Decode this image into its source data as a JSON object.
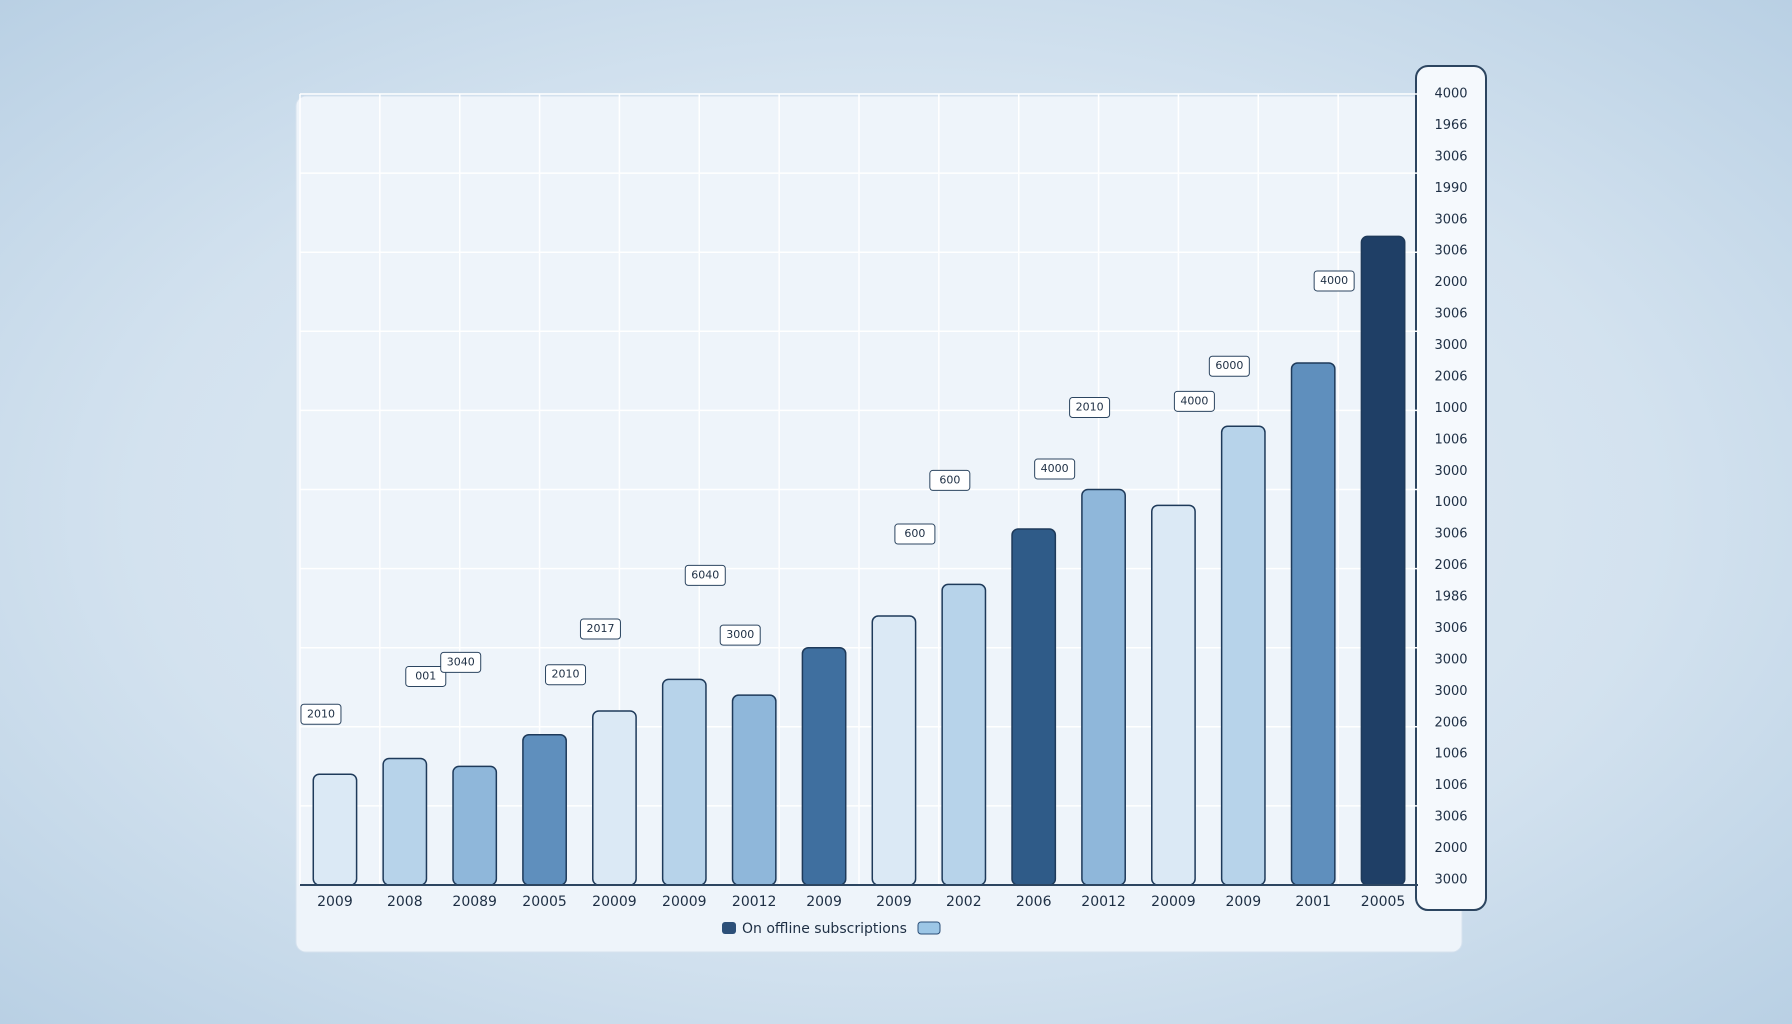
{
  "chart_data": {
    "type": "bar",
    "categories": [
      "2009",
      "2008",
      "20089",
      "20005",
      "20009",
      "20009",
      "20012",
      "2009",
      "2009",
      "2002",
      "2006",
      "20012",
      "20009",
      "2009",
      "2001",
      "20005"
    ],
    "values": [
      14,
      16,
      15,
      19,
      22,
      26,
      24,
      30,
      34,
      38,
      45,
      50,
      48,
      58,
      66,
      82
    ],
    "colors": [
      "#dbe9f5",
      "#b7d3ea",
      "#8fb7da",
      "#5f8fbd",
      "#dbe9f5",
      "#b7d3ea",
      "#8fb7da",
      "#3f6f9f",
      "#dbe9f5",
      "#b7d3ea",
      "#2f5b88",
      "#8fb7da",
      "#dbe9f5",
      "#b7d3ea",
      "#5f8fbd",
      "#1f3f66"
    ],
    "ylim": [
      0,
      100
    ],
    "legend": "On offline subscriptions",
    "annotations": [
      "2010",
      "001",
      "3040",
      "2010",
      "2017",
      "6040",
      "3000",
      "600",
      "600",
      "4000",
      "2010",
      "4000",
      "6000",
      "4000"
    ],
    "y_axis_labels": [
      "4000",
      "1966",
      "3006",
      "1990",
      "3006",
      "3006",
      "2000",
      "3006",
      "3000",
      "2006",
      "1000",
      "1006",
      "3000",
      "1000",
      "3006",
      "2006",
      "1986",
      "3006",
      "3000",
      "3000",
      "2006",
      "1006",
      "1006",
      "3006",
      "2000",
      "3000"
    ],
    "grid": true
  }
}
